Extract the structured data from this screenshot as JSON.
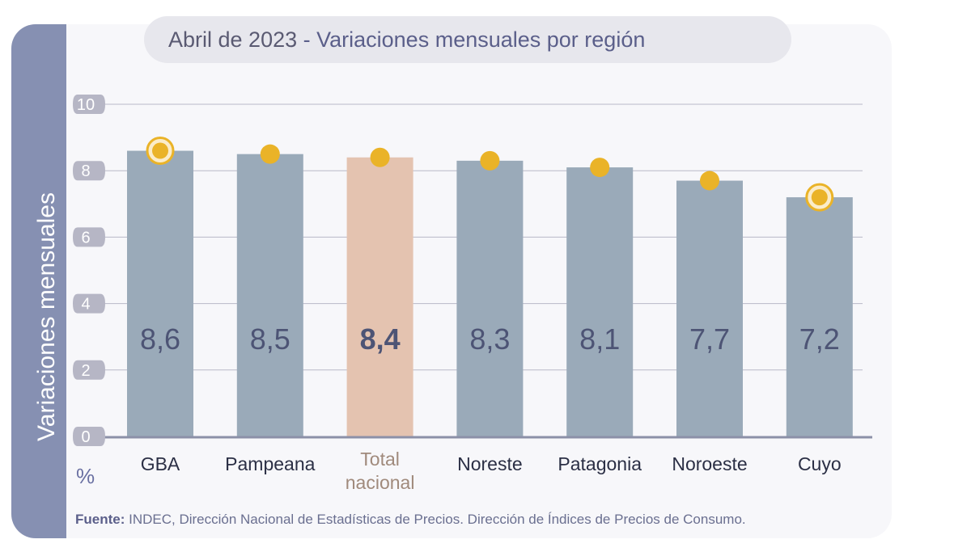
{
  "title": {
    "part1": "Abril de 2023",
    "sep": " - ",
    "part2": "Variaciones mensuales por región"
  },
  "ylabel": "Variaciones  mensuales",
  "unit": "%",
  "source": {
    "label": "Fuente:",
    "text": " INDEC, Dirección Nacional de Estadísticas de Precios. Dirección de Índices de Precios de Consumo."
  },
  "colors": {
    "bar": "#9aaab9",
    "highlight_bar": "#e4c3b0",
    "marker": "#eab328",
    "value_text": "#4d5475",
    "grid": "#b9b9c8",
    "tick_bubble": "#b6b6c5"
  },
  "chart_data": {
    "type": "bar",
    "categories": [
      "GBA",
      "Pampeana",
      "Total\nnacional",
      "Noreste",
      "Patagonia",
      "Noroeste",
      "Cuyo"
    ],
    "values": [
      8.6,
      8.5,
      8.4,
      8.3,
      8.1,
      7.7,
      7.2
    ],
    "value_labels": [
      "8,6",
      "8,5",
      "8,4",
      "8,3",
      "8,1",
      "7,7",
      "7,2"
    ],
    "highlight_index": 2,
    "ringed_markers": [
      0,
      6
    ],
    "yticks": [
      0,
      2,
      4,
      6,
      8,
      10
    ],
    "ylim": [
      0,
      10
    ],
    "grid": true
  }
}
